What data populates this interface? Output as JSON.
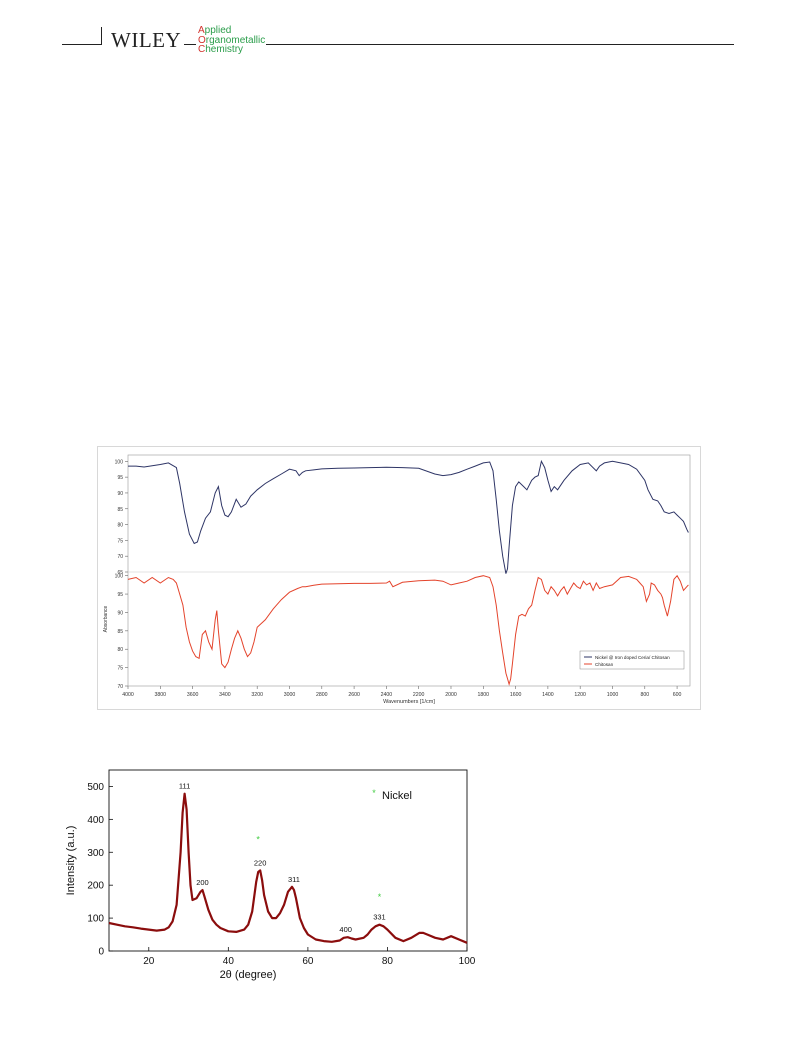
{
  "header": {
    "publisher": "WILEY",
    "journal_lines": [
      {
        "initial": "A",
        "rest": "pplied"
      },
      {
        "initial": "O",
        "rest": "rganometallic"
      },
      {
        "initial": "C",
        "rest": "hemistry"
      }
    ],
    "colors": {
      "initial": "#d2332e",
      "rest": "#2a9d4a"
    }
  },
  "chart_data": [
    {
      "type": "line",
      "xlabel": "Wavenumbers [1/cm]",
      "ylabel": "Absorbance",
      "xlim": [
        4000,
        520
      ],
      "x_reversed": true,
      "x_ticks": [
        4000,
        3800,
        3600,
        3400,
        3200,
        3000,
        2800,
        2600,
        2400,
        2200,
        2000,
        1800,
        1600,
        1400,
        1200,
        1000,
        800,
        600
      ],
      "panels": [
        {
          "ylim": [
            65,
            102
          ],
          "y_ticks": [
            100,
            95,
            90,
            85,
            80,
            75,
            70,
            65
          ]
        },
        {
          "ylim": [
            70,
            101
          ],
          "y_ticks": [
            100,
            95,
            90,
            85,
            80,
            75,
            70
          ]
        }
      ],
      "legend_position": "bottom-right",
      "series": [
        {
          "name": "Nickel @ Iron doped Ceria/ Chitosan",
          "color": "#2e3566",
          "panel": 0,
          "x": [
            4000,
            3950,
            3900,
            3850,
            3800,
            3750,
            3700,
            3680,
            3650,
            3620,
            3590,
            3570,
            3550,
            3520,
            3490,
            3460,
            3440,
            3420,
            3400,
            3380,
            3360,
            3330,
            3300,
            3270,
            3240,
            3200,
            3150,
            3100,
            3050,
            3000,
            2960,
            2940,
            2920,
            2900,
            2850,
            2800,
            2700,
            2600,
            2500,
            2400,
            2300,
            2200,
            2100,
            2050,
            2000,
            1950,
            1900,
            1850,
            1800,
            1760,
            1740,
            1720,
            1700,
            1680,
            1660,
            1650,
            1640,
            1620,
            1600,
            1580,
            1550,
            1530,
            1500,
            1480,
            1460,
            1440,
            1420,
            1400,
            1380,
            1360,
            1340,
            1300,
            1250,
            1200,
            1150,
            1100,
            1080,
            1050,
            1000,
            950,
            900,
            850,
            800,
            780,
            750,
            720,
            700,
            680,
            650,
            620,
            600,
            580,
            560,
            540,
            530
          ],
          "y": [
            98.5,
            98.5,
            98.2,
            98.6,
            99.0,
            99.5,
            98.0,
            93.0,
            84.0,
            77.0,
            74.0,
            74.5,
            78.0,
            82.0,
            84.0,
            90.0,
            92.0,
            86.0,
            83.0,
            82.5,
            84.0,
            88.0,
            85.5,
            86.5,
            89.0,
            91.0,
            93.0,
            94.5,
            96.0,
            97.5,
            97.0,
            95.5,
            96.5,
            97.0,
            97.3,
            97.6,
            97.8,
            97.9,
            98.0,
            98.1,
            98.0,
            97.8,
            96.0,
            95.5,
            95.8,
            96.5,
            97.5,
            98.5,
            99.5,
            99.8,
            97.0,
            88.0,
            78.0,
            70.0,
            64.5,
            66.0,
            73.0,
            86.0,
            92.0,
            93.5,
            92.0,
            91.0,
            94.0,
            95.0,
            95.5,
            100.0,
            98.0,
            94.0,
            90.5,
            92.0,
            91.0,
            94.0,
            97.0,
            99.0,
            99.5,
            97.0,
            98.5,
            99.5,
            100.0,
            99.5,
            99.0,
            97.5,
            94.0,
            91.0,
            88.0,
            87.5,
            86.0,
            84.0,
            83.5,
            84.0,
            83.0,
            82.0,
            81.0,
            78.5,
            77.5
          ]
        },
        {
          "name": "Chitosan",
          "color": "#e4442c",
          "panel": 1,
          "x": [
            4000,
            3950,
            3900,
            3850,
            3800,
            3750,
            3720,
            3700,
            3680,
            3660,
            3640,
            3620,
            3600,
            3580,
            3560,
            3540,
            3520,
            3500,
            3480,
            3460,
            3450,
            3440,
            3420,
            3400,
            3380,
            3360,
            3340,
            3320,
            3300,
            3280,
            3260,
            3240,
            3220,
            3200,
            3150,
            3100,
            3050,
            3000,
            2950,
            2920,
            2900,
            2850,
            2800,
            2700,
            2600,
            2500,
            2400,
            2380,
            2360,
            2300,
            2200,
            2100,
            2050,
            2000,
            1950,
            1900,
            1850,
            1800,
            1760,
            1740,
            1720,
            1700,
            1680,
            1660,
            1650,
            1640,
            1630,
            1620,
            1600,
            1580,
            1560,
            1540,
            1520,
            1500,
            1480,
            1460,
            1440,
            1420,
            1400,
            1380,
            1360,
            1340,
            1320,
            1300,
            1280,
            1260,
            1240,
            1220,
            1200,
            1180,
            1160,
            1140,
            1120,
            1100,
            1080,
            1050,
            1000,
            950,
            900,
            850,
            830,
            810,
            790,
            770,
            760,
            740,
            720,
            700,
            690,
            680,
            660,
            640,
            620,
            600,
            580,
            560,
            540,
            530
          ],
          "y": [
            99.0,
            99.5,
            98.0,
            99.5,
            98.0,
            99.5,
            99.0,
            98.0,
            95.0,
            92.0,
            86.0,
            82.0,
            79.5,
            78.0,
            77.5,
            84.0,
            85.0,
            82.0,
            80.0,
            88.0,
            90.5,
            85.0,
            76.0,
            75.0,
            76.5,
            80.0,
            83.0,
            85.0,
            83.0,
            80.0,
            78.0,
            79.0,
            82.0,
            86.0,
            88.0,
            91.0,
            93.5,
            95.5,
            96.5,
            97.0,
            97.0,
            97.4,
            97.7,
            97.8,
            97.9,
            97.9,
            98.0,
            98.5,
            97.0,
            98.2,
            98.6,
            98.8,
            98.5,
            97.5,
            98.0,
            98.5,
            99.5,
            100.0,
            99.5,
            97.0,
            92.0,
            85.0,
            79.0,
            73.5,
            72.0,
            70.5,
            72.0,
            76.0,
            84.0,
            89.0,
            89.5,
            89.0,
            91.0,
            92.0,
            96.0,
            99.5,
            99.0,
            96.0,
            95.0,
            97.0,
            96.0,
            94.5,
            96.0,
            97.0,
            95.0,
            96.5,
            98.0,
            97.0,
            96.5,
            98.5,
            97.5,
            98.0,
            96.0,
            98.0,
            96.5,
            97.0,
            97.5,
            99.5,
            99.8,
            99.0,
            98.0,
            97.0,
            93.0,
            95.0,
            98.0,
            97.5,
            96.0,
            95.0,
            94.0,
            92.0,
            89.0,
            93.0,
            99.0,
            100.0,
            98.5,
            96.0,
            97.0,
            97.5
          ]
        }
      ]
    },
    {
      "type": "line",
      "xlabel": "2θ (degree)",
      "ylabel": "Intensity (a.u.)",
      "xlim": [
        10,
        100
      ],
      "ylim": [
        0,
        550
      ],
      "x_ticks": [
        20,
        40,
        60,
        80,
        100
      ],
      "y_ticks": [
        0,
        100,
        200,
        300,
        400,
        500
      ],
      "legend_position": "top-right",
      "legend": [
        {
          "name": "Nickel",
          "marker_color": "#44cc44"
        }
      ],
      "series": [
        {
          "name": "Nickel",
          "color": "#8b0d0d",
          "x": [
            10,
            12,
            14,
            16,
            18,
            20,
            22,
            24,
            25,
            26,
            27,
            28,
            28.5,
            29,
            29.5,
            30,
            30.5,
            31,
            32,
            33,
            33.5,
            34,
            35,
            36,
            37,
            38,
            40,
            42,
            44,
            45,
            46,
            47,
            47.5,
            48,
            48.5,
            49,
            50,
            51,
            52,
            53,
            54,
            55,
            56,
            56.5,
            57,
            58,
            59,
            60,
            62,
            64,
            66,
            68,
            69,
            70,
            71,
            72,
            74,
            75,
            76,
            77,
            78,
            79,
            80,
            82,
            84,
            86,
            88,
            89,
            90,
            92,
            94,
            96,
            98,
            100
          ],
          "y": [
            85,
            80,
            75,
            72,
            68,
            65,
            62,
            65,
            72,
            90,
            140,
            300,
            420,
            478,
            430,
            300,
            200,
            155,
            160,
            180,
            185,
            165,
            125,
            95,
            80,
            70,
            60,
            58,
            65,
            80,
            120,
            210,
            240,
            245,
            215,
            170,
            120,
            100,
            100,
            115,
            140,
            180,
            195,
            185,
            160,
            100,
            70,
            50,
            35,
            30,
            28,
            32,
            40,
            42,
            38,
            35,
            40,
            50,
            65,
            75,
            80,
            75,
            65,
            40,
            30,
            40,
            55,
            55,
            50,
            40,
            35,
            45,
            35,
            25
          ]
        }
      ],
      "annotations": [
        {
          "label": "111",
          "x": 29,
          "y": 478
        },
        {
          "label": "200",
          "x": 33.5,
          "y": 185
        },
        {
          "label": "220",
          "x": 48,
          "y": 245
        },
        {
          "label": "311",
          "x": 56.5,
          "y": 195
        },
        {
          "label": "400",
          "x": 69.5,
          "y": 42
        },
        {
          "label": "331",
          "x": 78,
          "y": 80
        }
      ],
      "markers": [
        {
          "symbol": "*",
          "x": 47.5,
          "y": 330
        },
        {
          "symbol": "*",
          "x": 78,
          "y": 155
        }
      ]
    }
  ]
}
